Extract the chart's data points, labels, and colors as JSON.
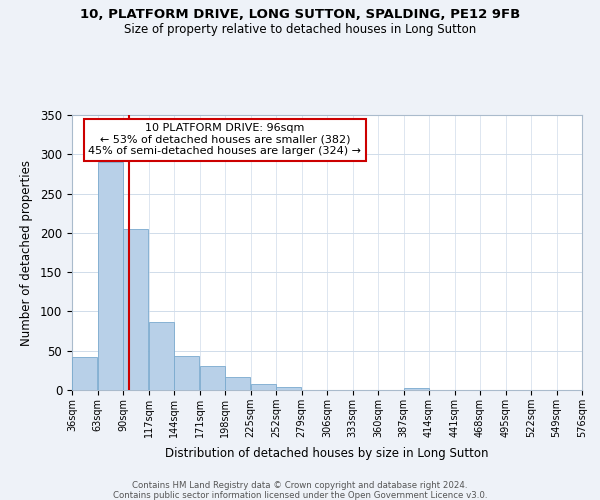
{
  "title": "10, PLATFORM DRIVE, LONG SUTTON, SPALDING, PE12 9FB",
  "subtitle": "Size of property relative to detached houses in Long Sutton",
  "bar_values": [
    42,
    290,
    205,
    87,
    43,
    30,
    17,
    8,
    4,
    0,
    0,
    0,
    0,
    3,
    0,
    0,
    0,
    0,
    0,
    0
  ],
  "bin_edges": [
    36,
    63,
    90,
    117,
    144,
    171,
    198,
    225,
    252,
    279,
    306,
    333,
    360,
    387,
    414,
    441,
    468,
    495,
    522,
    549,
    576
  ],
  "tick_labels": [
    "36sqm",
    "63sqm",
    "90sqm",
    "117sqm",
    "144sqm",
    "171sqm",
    "198sqm",
    "225sqm",
    "252sqm",
    "279sqm",
    "306sqm",
    "333sqm",
    "360sqm",
    "387sqm",
    "414sqm",
    "441sqm",
    "468sqm",
    "495sqm",
    "522sqm",
    "549sqm",
    "576sqm"
  ],
  "bar_color": "#b8d0e8",
  "bar_edge_color": "#7aaace",
  "vline_x": 96,
  "vline_color": "#cc0000",
  "ylabel": "Number of detached properties",
  "xlabel": "Distribution of detached houses by size in Long Sutton",
  "ylim": [
    0,
    350
  ],
  "yticks": [
    0,
    50,
    100,
    150,
    200,
    250,
    300,
    350
  ],
  "annotation_title": "10 PLATFORM DRIVE: 96sqm",
  "annotation_line1": "← 53% of detached houses are smaller (382)",
  "annotation_line2": "45% of semi-detached houses are larger (324) →",
  "annotation_box_color": "#ffffff",
  "annotation_box_edge": "#cc0000",
  "footer1": "Contains HM Land Registry data © Crown copyright and database right 2024.",
  "footer2": "Contains public sector information licensed under the Open Government Licence v3.0.",
  "background_color": "#eef2f8",
  "plot_bg_color": "#ffffff",
  "grid_color": "#d0dcea"
}
